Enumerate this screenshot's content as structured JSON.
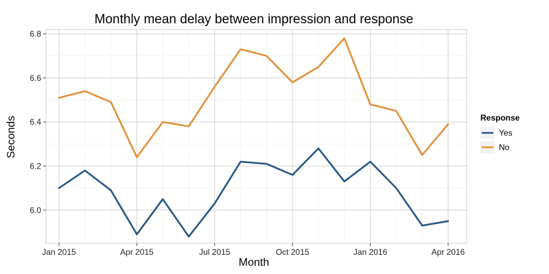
{
  "chart_data": {
    "type": "line",
    "title": "Monthly mean delay between impression and response",
    "xlabel": "Month",
    "ylabel": "Seconds",
    "x": [
      "2015-01",
      "2015-02",
      "2015-03",
      "2015-04",
      "2015-05",
      "2015-06",
      "2015-07",
      "2015-08",
      "2015-09",
      "2015-10",
      "2015-11",
      "2015-12",
      "2016-01",
      "2016-02",
      "2016-03",
      "2016-04"
    ],
    "x_tick_labels": [
      "Jan 2015",
      "Apr 2015",
      "Jul 2015",
      "Oct 2015",
      "Jan 2016",
      "Apr 2016"
    ],
    "y_ticks": [
      6.0,
      6.2,
      6.4,
      6.6,
      6.8
    ],
    "y_tick_labels": [
      "6.0",
      "6.2",
      "6.4",
      "6.6",
      "6.8"
    ],
    "ylim": [
      5.85,
      6.82
    ],
    "legend": {
      "title": "Response",
      "position": "right"
    },
    "grid": true,
    "series": [
      {
        "name": "Yes",
        "color": "#2a5783",
        "values": [
          6.1,
          6.18,
          6.09,
          5.89,
          6.05,
          5.88,
          6.03,
          6.22,
          6.21,
          6.16,
          6.28,
          6.13,
          6.22,
          6.1,
          5.93,
          5.95
        ]
      },
      {
        "name": "No",
        "color": "#e0913a",
        "values": [
          6.51,
          6.54,
          6.49,
          6.24,
          6.4,
          6.38,
          6.56,
          6.73,
          6.7,
          6.58,
          6.65,
          6.78,
          6.48,
          6.45,
          6.25,
          6.39
        ]
      }
    ]
  }
}
